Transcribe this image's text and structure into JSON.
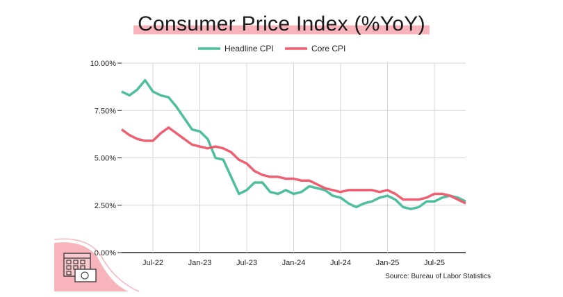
{
  "chart_data": {
    "type": "line",
    "title": "Consumer Price Index (%YoY)",
    "source": "Source: Bureau of Labor Statistics",
    "ylim": [
      0,
      10
    ],
    "yticks": [
      0,
      2.5,
      5,
      7.5,
      10
    ],
    "ytick_labels": [
      "0.00%",
      "2.50%",
      "5.00%",
      "7.50%",
      "10.00%"
    ],
    "xticks": [
      "Jul-22",
      "Jan-23",
      "Jul-23",
      "Jan-24",
      "Jul-24",
      "Jan-25",
      "Jul-25"
    ],
    "x_start": "Mar-22",
    "x_end": "Nov-25",
    "grid": true,
    "legend_placement": "top-center",
    "series": [
      {
        "name": "Headline CPI",
        "color": "#4dbf9c",
        "values": [
          8.5,
          8.3,
          8.6,
          9.1,
          8.5,
          8.3,
          8.2,
          7.7,
          7.1,
          6.5,
          6.4,
          6.0,
          5.0,
          4.9,
          4.0,
          3.1,
          3.3,
          3.7,
          3.7,
          3.2,
          3.1,
          3.3,
          3.1,
          3.2,
          3.5,
          3.4,
          3.3,
          3.0,
          2.9,
          2.6,
          2.4,
          2.6,
          2.7,
          2.9,
          3.0,
          2.8,
          2.4,
          2.3,
          2.4,
          2.7,
          2.7,
          2.9,
          3.0,
          2.9,
          2.7
        ]
      },
      {
        "name": "Core CPI",
        "color": "#ef5f72",
        "values": [
          6.5,
          6.2,
          6.0,
          5.9,
          5.9,
          6.3,
          6.6,
          6.3,
          6.0,
          5.7,
          5.6,
          5.5,
          5.6,
          5.5,
          5.3,
          4.9,
          4.7,
          4.3,
          4.1,
          4.0,
          4.0,
          3.9,
          3.9,
          3.8,
          3.8,
          3.6,
          3.4,
          3.3,
          3.2,
          3.3,
          3.3,
          3.3,
          3.3,
          3.2,
          3.3,
          3.1,
          2.8,
          2.8,
          2.8,
          2.9,
          3.1,
          3.1,
          3.0,
          2.8,
          2.6
        ]
      }
    ]
  },
  "decor": {
    "icon": "calendar-money-icon",
    "accent": "#f8b4bb"
  }
}
